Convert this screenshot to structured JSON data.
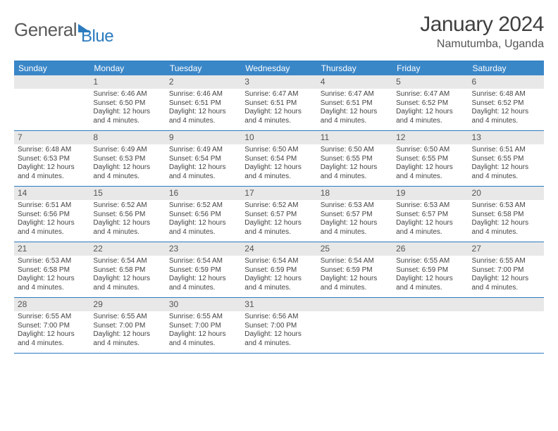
{
  "logo": {
    "word1": "General",
    "word2": "Blue"
  },
  "title": "January 2024",
  "location": "Namutumba, Uganda",
  "dayHeaders": [
    "Sunday",
    "Monday",
    "Tuesday",
    "Wednesday",
    "Thursday",
    "Friday",
    "Saturday"
  ],
  "colors": {
    "headerBg": "#3a87c8",
    "border": "#2b7bbf",
    "daynumBg": "#e8e8e8",
    "text": "#444444",
    "titleText": "#404040"
  },
  "typography": {
    "titleSize": 30,
    "locationSize": 16,
    "dayHeaderSize": 12,
    "cellSize": 10
  },
  "days": [
    {
      "n": "1",
      "sr": "6:46 AM",
      "ss": "6:50 PM",
      "dl": "12 hours and 4 minutes."
    },
    {
      "n": "2",
      "sr": "6:46 AM",
      "ss": "6:51 PM",
      "dl": "12 hours and 4 minutes."
    },
    {
      "n": "3",
      "sr": "6:47 AM",
      "ss": "6:51 PM",
      "dl": "12 hours and 4 minutes."
    },
    {
      "n": "4",
      "sr": "6:47 AM",
      "ss": "6:51 PM",
      "dl": "12 hours and 4 minutes."
    },
    {
      "n": "5",
      "sr": "6:47 AM",
      "ss": "6:52 PM",
      "dl": "12 hours and 4 minutes."
    },
    {
      "n": "6",
      "sr": "6:48 AM",
      "ss": "6:52 PM",
      "dl": "12 hours and 4 minutes."
    },
    {
      "n": "7",
      "sr": "6:48 AM",
      "ss": "6:53 PM",
      "dl": "12 hours and 4 minutes."
    },
    {
      "n": "8",
      "sr": "6:49 AM",
      "ss": "6:53 PM",
      "dl": "12 hours and 4 minutes."
    },
    {
      "n": "9",
      "sr": "6:49 AM",
      "ss": "6:54 PM",
      "dl": "12 hours and 4 minutes."
    },
    {
      "n": "10",
      "sr": "6:50 AM",
      "ss": "6:54 PM",
      "dl": "12 hours and 4 minutes."
    },
    {
      "n": "11",
      "sr": "6:50 AM",
      "ss": "6:55 PM",
      "dl": "12 hours and 4 minutes."
    },
    {
      "n": "12",
      "sr": "6:50 AM",
      "ss": "6:55 PM",
      "dl": "12 hours and 4 minutes."
    },
    {
      "n": "13",
      "sr": "6:51 AM",
      "ss": "6:55 PM",
      "dl": "12 hours and 4 minutes."
    },
    {
      "n": "14",
      "sr": "6:51 AM",
      "ss": "6:56 PM",
      "dl": "12 hours and 4 minutes."
    },
    {
      "n": "15",
      "sr": "6:52 AM",
      "ss": "6:56 PM",
      "dl": "12 hours and 4 minutes."
    },
    {
      "n": "16",
      "sr": "6:52 AM",
      "ss": "6:56 PM",
      "dl": "12 hours and 4 minutes."
    },
    {
      "n": "17",
      "sr": "6:52 AM",
      "ss": "6:57 PM",
      "dl": "12 hours and 4 minutes."
    },
    {
      "n": "18",
      "sr": "6:53 AM",
      "ss": "6:57 PM",
      "dl": "12 hours and 4 minutes."
    },
    {
      "n": "19",
      "sr": "6:53 AM",
      "ss": "6:57 PM",
      "dl": "12 hours and 4 minutes."
    },
    {
      "n": "20",
      "sr": "6:53 AM",
      "ss": "6:58 PM",
      "dl": "12 hours and 4 minutes."
    },
    {
      "n": "21",
      "sr": "6:53 AM",
      "ss": "6:58 PM",
      "dl": "12 hours and 4 minutes."
    },
    {
      "n": "22",
      "sr": "6:54 AM",
      "ss": "6:58 PM",
      "dl": "12 hours and 4 minutes."
    },
    {
      "n": "23",
      "sr": "6:54 AM",
      "ss": "6:59 PM",
      "dl": "12 hours and 4 minutes."
    },
    {
      "n": "24",
      "sr": "6:54 AM",
      "ss": "6:59 PM",
      "dl": "12 hours and 4 minutes."
    },
    {
      "n": "25",
      "sr": "6:54 AM",
      "ss": "6:59 PM",
      "dl": "12 hours and 4 minutes."
    },
    {
      "n": "26",
      "sr": "6:55 AM",
      "ss": "6:59 PM",
      "dl": "12 hours and 4 minutes."
    },
    {
      "n": "27",
      "sr": "6:55 AM",
      "ss": "7:00 PM",
      "dl": "12 hours and 4 minutes."
    },
    {
      "n": "28",
      "sr": "6:55 AM",
      "ss": "7:00 PM",
      "dl": "12 hours and 4 minutes."
    },
    {
      "n": "29",
      "sr": "6:55 AM",
      "ss": "7:00 PM",
      "dl": "12 hours and 4 minutes."
    },
    {
      "n": "30",
      "sr": "6:55 AM",
      "ss": "7:00 PM",
      "dl": "12 hours and 4 minutes."
    },
    {
      "n": "31",
      "sr": "6:56 AM",
      "ss": "7:00 PM",
      "dl": "12 hours and 4 minutes."
    }
  ],
  "labels": {
    "sunrise": "Sunrise:",
    "sunset": "Sunset:",
    "daylight": "Daylight:"
  },
  "layout": {
    "startWeekday": 1,
    "weeks": 5,
    "cols": 7
  }
}
